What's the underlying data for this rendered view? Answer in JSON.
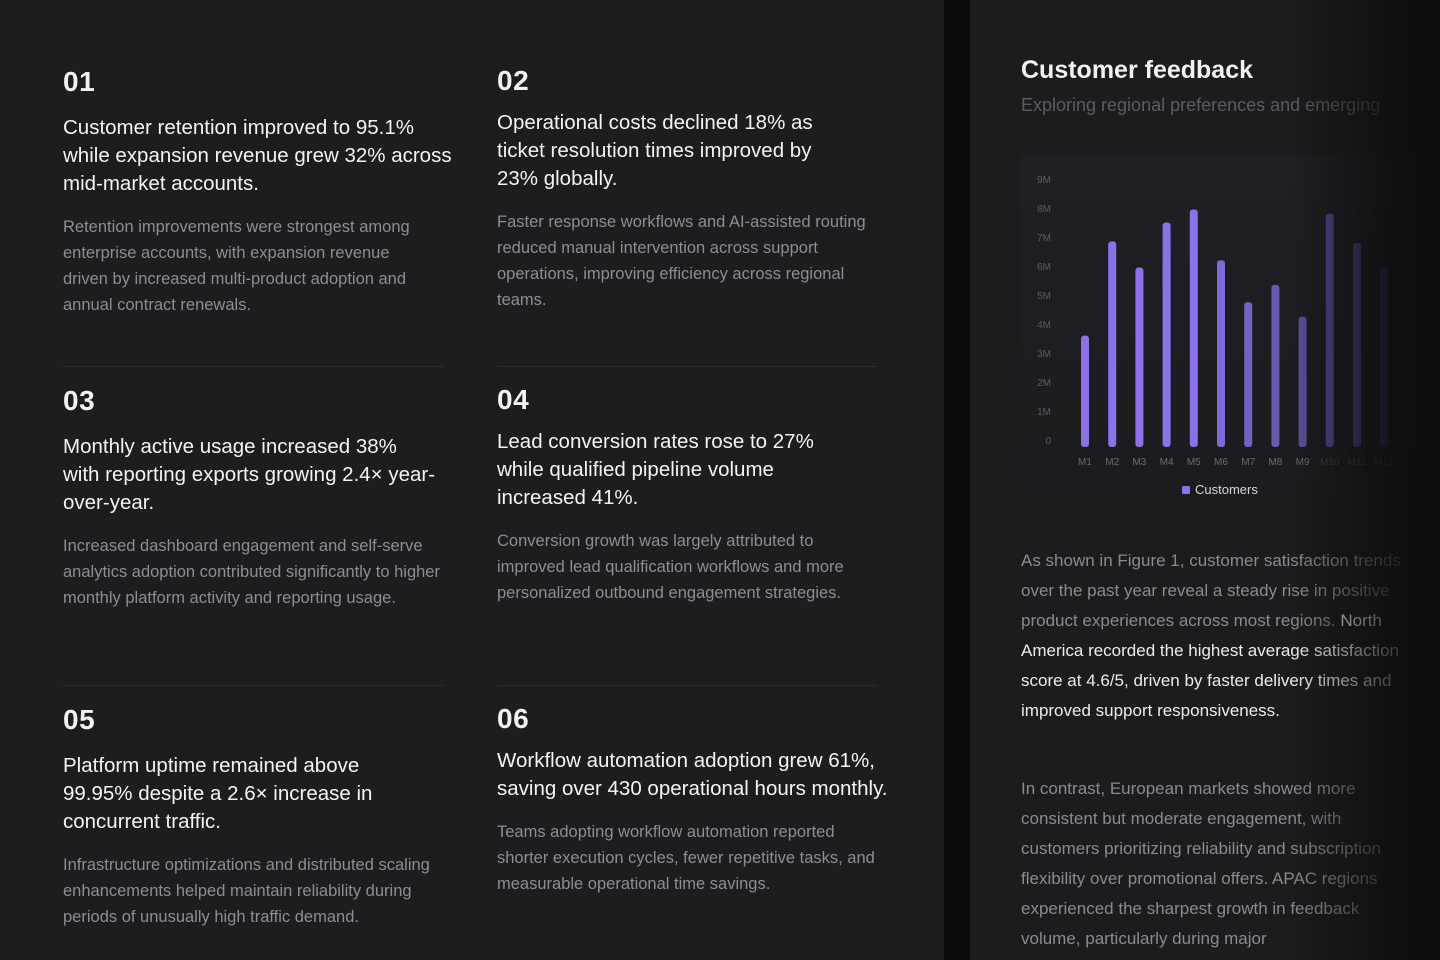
{
  "cards": [
    {
      "num": "01",
      "headline": "Customer retention improved to 95.1% while expansion revenue grew 32% across mid-market accounts.",
      "body": "Retention improvements were strongest among enterprise accounts, with expansion revenue driven by increased multi-product adoption and annual contract renewals."
    },
    {
      "num": "02",
      "headline": "Operational costs declined 18% as ticket resolution times improved by 23% globally.",
      "body": "Faster response workflows and AI-assisted routing reduced manual intervention across support operations, improving efficiency across regional teams."
    },
    {
      "num": "03",
      "headline": "Monthly active usage increased 38% with reporting exports growing 2.4× year-over-year.",
      "body": "Increased dashboard engagement and self-serve analytics adoption contributed significantly to higher monthly platform activity and reporting usage."
    },
    {
      "num": "04",
      "headline": "Lead conversion rates rose to 27% while qualified pipeline volume increased 41%.",
      "body": "Conversion growth was largely attributed to improved lead qualification workflows and more personalized outbound engagement strategies."
    },
    {
      "num": "05",
      "headline": "Platform uptime remained above 99.95% despite a 2.6× increase in concurrent traffic.",
      "body": "Infrastructure optimizations and distributed scaling enhancements helped maintain reliability during periods of unusually high traffic demand."
    },
    {
      "num": "06",
      "headline": "Workflow automation adoption grew 61%, saving over 430 operational hours monthly.",
      "body": "Teams adopting workflow automation reported shorter execution cycles, fewer repetitive tasks, and measurable operational time savings."
    }
  ],
  "feedback": {
    "title": "Customer feedback",
    "subtitle": "Exploring regional preferences and emerging",
    "para1_a": "As shown in Figure 1, customer satisfaction trends over the past year reveal a steady rise in positive product experiences across most regions. ",
    "para1_b": "North America recorded the highest average satisfaction score at 4.6/5, driven by faster delivery times and improved support responsiveness.",
    "para2": "In contrast, European markets showed more consistent but moderate engagement, with customers prioritizing reliability and subscription flexibility over promotional offers. APAC regions experienced the sharpest growth in feedback volume, particularly during major"
  },
  "chart_data": {
    "type": "bar",
    "title": "",
    "xlabel": "",
    "ylabel": "",
    "categories": [
      "M1",
      "M2",
      "M3",
      "M4",
      "M5",
      "M6",
      "M7",
      "M8",
      "M9",
      "M10",
      "M11",
      "M12"
    ],
    "y_ticks": [
      "0",
      "1M",
      "2M",
      "3M",
      "4M",
      "5M",
      "6M",
      "7M",
      "8M",
      "9M"
    ],
    "ylim": [
      0,
      9000000
    ],
    "series": [
      {
        "name": "Customers",
        "values": [
          3600000,
          6850000,
          5950000,
          7500000,
          7950000,
          6200000,
          4750000,
          5350000,
          4250000,
          7800000,
          6800000,
          5950000
        ]
      }
    ],
    "legend": "bottom-center",
    "grid": false,
    "colors": {
      "bar_bright": "#8b72e8",
      "bar_dim": "#3e3568"
    }
  }
}
